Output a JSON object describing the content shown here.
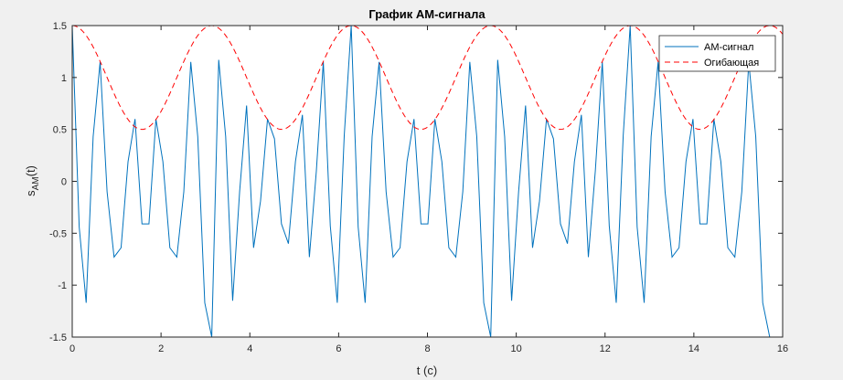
{
  "chart_data": {
    "type": "line",
    "title": "График AM-сигнала",
    "xlabel": "t (c)",
    "ylabel": "s",
    "ylabel_sub": "AM",
    "ylabel_tail": "(t)",
    "xlim": [
      0,
      16
    ],
    "ylim": [
      -1.5,
      1.5
    ],
    "xticks": [
      0,
      2,
      4,
      6,
      8,
      10,
      12,
      14,
      16
    ],
    "yticks": [
      -1.5,
      -1,
      -0.5,
      0,
      0.5,
      1,
      1.5
    ],
    "xtick_labels": [
      "0",
      "2",
      "4",
      "6",
      "8",
      "10",
      "12",
      "14",
      "16"
    ],
    "ytick_labels": [
      "-1.5",
      "-1",
      "-0.5",
      "0",
      "0.5",
      "1",
      "1.5"
    ],
    "grid": false,
    "legend_position": "top-right",
    "series": [
      {
        "name": "AM-сигнал",
        "color": "#0072bd",
        "style": "solid",
        "x": [
          0,
          0.157,
          0.314,
          0.471,
          0.628,
          0.785,
          0.942,
          1.1,
          1.257,
          1.414,
          1.571,
          1.728,
          1.885,
          2.042,
          2.199,
          2.356,
          2.513,
          2.67,
          2.827,
          2.985,
          3.142,
          3.299,
          3.456,
          3.613,
          3.77,
          3.927,
          4.084,
          4.241,
          4.398,
          4.555,
          4.712,
          4.869,
          5.027,
          5.184,
          5.341,
          5.498,
          5.655,
          5.812,
          5.969,
          6.126,
          6.283,
          6.44,
          6.597,
          6.754,
          6.912,
          7.069,
          7.226,
          7.383,
          7.54,
          7.697,
          7.854,
          8.011,
          8.168,
          8.325,
          8.482,
          8.639,
          8.796,
          8.954,
          9.111,
          9.268,
          9.425,
          9.582,
          9.739,
          9.896,
          10.053,
          10.21,
          10.367,
          10.524,
          10.681,
          10.838,
          10.996,
          11.153,
          11.31,
          11.467,
          11.624,
          11.781,
          11.938,
          12.095,
          12.252,
          12.409,
          12.566,
          12.723,
          12.881,
          13.038,
          13.195,
          13.352,
          13.509,
          13.666,
          13.823,
          13.98,
          14.137,
          14.294,
          14.451,
          14.608,
          14.765,
          14.923,
          15.08,
          15.237,
          15.394,
          15.551,
          15.708
        ],
        "y": [
          1.5,
          -0.44,
          -1.17,
          0.43,
          1.15,
          -0.1,
          -0.73,
          -0.64,
          0.19,
          0.6,
          -0.41,
          -0.41,
          0.6,
          0.19,
          -0.64,
          -0.73,
          -0.1,
          1.15,
          0.43,
          -1.17,
          -1.5,
          1.17,
          0.43,
          -1.15,
          -0.1,
          0.73,
          -0.64,
          -0.19,
          0.6,
          0.41,
          -0.41,
          -0.6,
          0.19,
          0.64,
          -0.73,
          0.1,
          1.15,
          -0.43,
          -1.17,
          0.44,
          1.5,
          -0.44,
          -1.17,
          0.43,
          1.15,
          -0.1,
          -0.73,
          -0.64,
          0.19,
          0.6,
          -0.41,
          -0.41,
          0.6,
          0.19,
          -0.64,
          -0.73,
          -0.1,
          1.15,
          0.43,
          -1.17,
          -1.5,
          1.17,
          0.43,
          -1.15,
          -0.1,
          0.73,
          -0.64,
          -0.19,
          0.6,
          0.41,
          -0.41,
          -0.6,
          0.19,
          0.64,
          -0.73,
          0.1,
          1.15,
          -0.43,
          -1.17,
          0.44,
          1.5,
          -0.44,
          -1.17,
          0.43,
          1.15,
          -0.1,
          -0.73,
          -0.64,
          0.19,
          0.6,
          -0.41,
          -0.41,
          0.6,
          0.19,
          -0.64,
          -0.73,
          -0.1,
          1.15,
          0.43,
          -1.17,
          -1.5
        ]
      },
      {
        "name": "Огибающая",
        "color": "#ff0000",
        "style": "dashed",
        "function": "1 + 0.5*cos(2*t)"
      }
    ]
  }
}
